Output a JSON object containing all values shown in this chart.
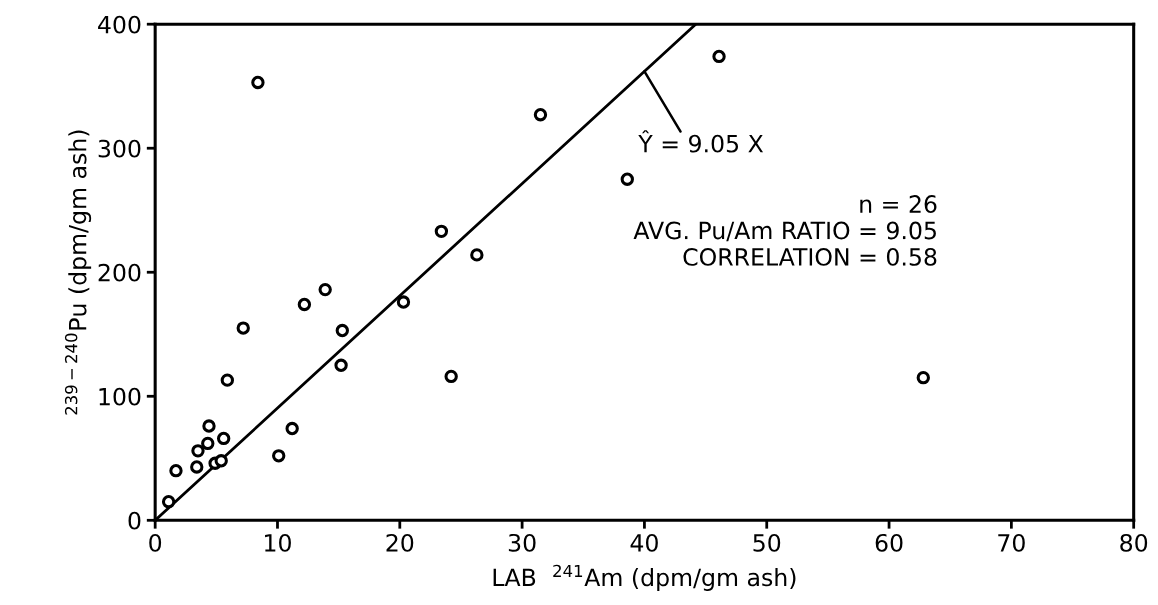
{
  "chart_data": {
    "type": "scatter",
    "xlabel": "LAB  $^{241}$Am (dpm/gm ash)",
    "ylabel": "$^{239−240}$Pu (dpm/gm ash)",
    "xlim": [
      0,
      80
    ],
    "xticks": [
      0,
      10,
      20,
      30,
      40,
      50,
      60,
      70,
      80
    ],
    "ylim": [
      0,
      400
    ],
    "yticks": [
      0,
      100,
      200,
      300,
      400
    ],
    "grid": false,
    "legend": false,
    "series": [
      {
        "color": "#000000",
        "marker": "circle",
        "x": [
          1.1,
          1.7,
          3.4,
          3.5,
          4.3,
          4.4,
          5.6,
          4.9,
          5.4,
          5.9,
          7.2,
          8.4,
          10.1,
          11.2,
          15.2,
          15.3,
          12.2,
          20.3,
          31.5,
          46.1,
          38.6,
          23.4,
          26.3,
          13.9,
          24.2,
          62.8
        ],
        "values": [
          15,
          40,
          43,
          56,
          62,
          76,
          66,
          46,
          48,
          113,
          155,
          353,
          52,
          74,
          125,
          153,
          174,
          176,
          327,
          374,
          275,
          233,
          214,
          186,
          116,
          115
        ]
      },
      {
        "type": "line",
        "color": "#000000",
        "x": [
          0,
          44.2
        ],
        "values": [
          0,
          400
        ]
      }
    ],
    "annotations": [
      {
        "text": "Ŷ = 9.05 X",
        "x": 40,
        "y": 362
      },
      "n = 26\nAVG. Pu/Am RATIO = 9.05\nCORRELATION = 0.58"
    ]
  }
}
